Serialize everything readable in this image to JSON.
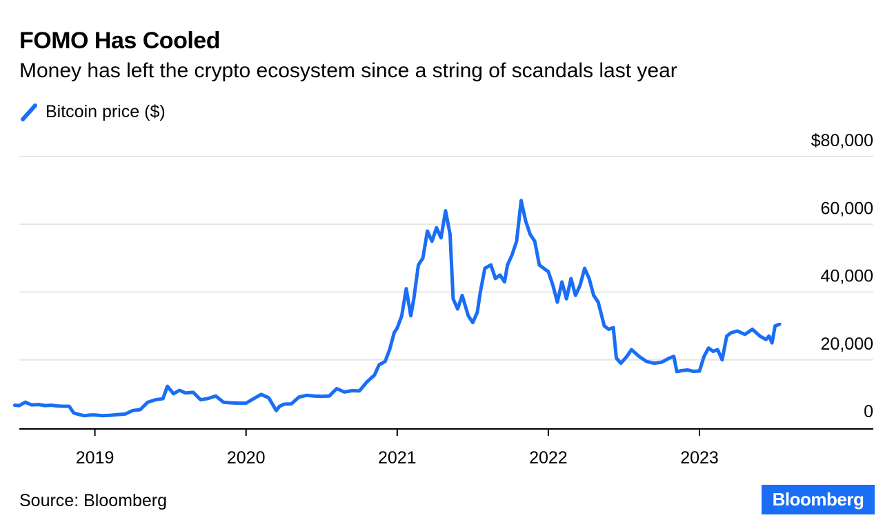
{
  "header": {
    "title": "FOMO Has Cooled",
    "subtitle": "Money has left the crypto ecosystem since a string of scandals last year"
  },
  "legend": {
    "label": "Bitcoin price ($)"
  },
  "footer": {
    "source": "Source: Bloomberg",
    "logo": "Bloomberg"
  },
  "colors": {
    "line": "#1a6ef5",
    "grid": "#e6e6e6",
    "axis": "#000000"
  },
  "chart_data": {
    "type": "line",
    "title": "FOMO Has Cooled",
    "subtitle": "Money has left the crypto ecosystem since a string of scandals last year",
    "xlabel": "",
    "ylabel": "",
    "ylim": [
      0,
      80000
    ],
    "xlim": [
      2018.5,
      2024.15
    ],
    "y_ticks": [
      {
        "value": 0,
        "label": "0"
      },
      {
        "value": 20000,
        "label": "20,000"
      },
      {
        "value": 40000,
        "label": "40,000"
      },
      {
        "value": 60000,
        "label": "60,000"
      },
      {
        "value": 80000,
        "label": "$80,000"
      }
    ],
    "x_ticks": [
      {
        "value": 2019.0,
        "label": "2019"
      },
      {
        "value": 2020.0,
        "label": "2020"
      },
      {
        "value": 2021.0,
        "label": "2021"
      },
      {
        "value": 2022.0,
        "label": "2022"
      },
      {
        "value": 2023.0,
        "label": "2023"
      }
    ],
    "grid": true,
    "legend_position": "top-left",
    "series": [
      {
        "name": "Bitcoin price ($)",
        "x": [
          2018.47,
          2018.5,
          2018.54,
          2018.58,
          2018.63,
          2018.67,
          2018.71,
          2018.75,
          2018.79,
          2018.83,
          2018.86,
          2018.9,
          2018.93,
          2018.97,
          2019.0,
          2019.05,
          2019.1,
          2019.15,
          2019.2,
          2019.25,
          2019.3,
          2019.35,
          2019.4,
          2019.45,
          2019.48,
          2019.52,
          2019.56,
          2019.6,
          2019.65,
          2019.7,
          2019.75,
          2019.8,
          2019.85,
          2019.9,
          2019.95,
          2020.0,
          2020.05,
          2020.1,
          2020.15,
          2020.2,
          2020.22,
          2020.25,
          2020.3,
          2020.35,
          2020.4,
          2020.45,
          2020.5,
          2020.55,
          2020.6,
          2020.65,
          2020.7,
          2020.75,
          2020.8,
          2020.85,
          2020.88,
          2020.92,
          2020.95,
          2020.98,
          2021.0,
          2021.03,
          2021.06,
          2021.09,
          2021.11,
          2021.14,
          2021.17,
          2021.2,
          2021.23,
          2021.26,
          2021.29,
          2021.32,
          2021.35,
          2021.37,
          2021.4,
          2021.43,
          2021.47,
          2021.5,
          2021.53,
          2021.55,
          2021.58,
          2021.62,
          2021.65,
          2021.68,
          2021.71,
          2021.73,
          2021.76,
          2021.79,
          2021.82,
          2021.85,
          2021.88,
          2021.91,
          2021.94,
          2021.97,
          2022.0,
          2022.03,
          2022.06,
          2022.09,
          2022.12,
          2022.15,
          2022.18,
          2022.21,
          2022.24,
          2022.27,
          2022.3,
          2022.33,
          2022.37,
          2022.4,
          2022.43,
          2022.45,
          2022.48,
          2022.52,
          2022.55,
          2022.6,
          2022.65,
          2022.7,
          2022.75,
          2022.8,
          2022.83,
          2022.85,
          2022.88,
          2022.92,
          2022.96,
          2023.0,
          2023.03,
          2023.06,
          2023.09,
          2023.12,
          2023.15,
          2023.18,
          2023.21,
          2023.25,
          2023.3,
          2023.35,
          2023.4,
          2023.44,
          2023.46,
          2023.48,
          2023.5,
          2023.53
        ],
        "values": [
          6600,
          6500,
          7500,
          6700,
          6800,
          6500,
          6600,
          6400,
          6300,
          6300,
          4300,
          3800,
          3500,
          3700,
          3700,
          3500,
          3600,
          3800,
          4000,
          5000,
          5300,
          7500,
          8200,
          8500,
          12200,
          10000,
          11000,
          10200,
          10400,
          8200,
          8600,
          9300,
          7500,
          7300,
          7200,
          7200,
          8500,
          9800,
          8800,
          5000,
          6200,
          6900,
          7000,
          9000,
          9500,
          9300,
          9200,
          9300,
          11500,
          10500,
          10900,
          10800,
          13500,
          15500,
          18500,
          19500,
          23000,
          28000,
          29400,
          33000,
          41000,
          33000,
          38000,
          48000,
          50000,
          58000,
          55000,
          59000,
          56000,
          64000,
          57000,
          38000,
          35000,
          39000,
          33000,
          31000,
          34000,
          40000,
          47000,
          48000,
          44000,
          45000,
          43000,
          48000,
          51000,
          55000,
          67000,
          61000,
          57000,
          55000,
          48000,
          47000,
          46000,
          42000,
          37000,
          43000,
          38000,
          44000,
          39000,
          42000,
          47000,
          44000,
          39000,
          37000,
          30000,
          29000,
          29500,
          20500,
          19000,
          21000,
          23000,
          21000,
          19500,
          19000,
          19300,
          20500,
          21000,
          16500,
          16800,
          17000,
          16600,
          16700,
          21000,
          23500,
          22500,
          23000,
          20000,
          27000,
          28000,
          28500,
          27500,
          29000,
          27000,
          26000,
          27000,
          25000,
          30000,
          30500
        ]
      }
    ]
  }
}
